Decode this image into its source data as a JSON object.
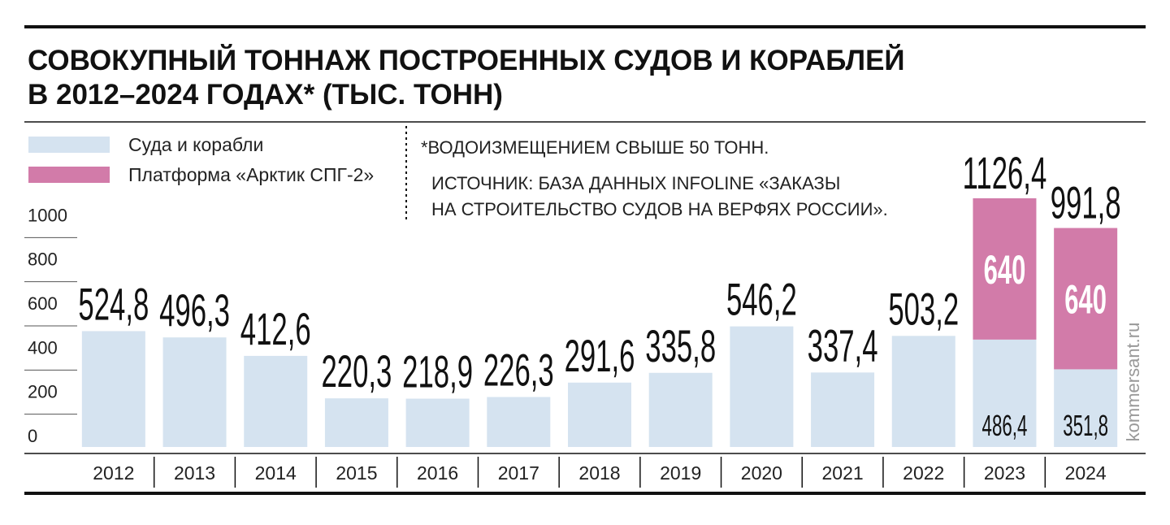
{
  "chart_data": {
    "type": "stacked_bar",
    "title_lines": [
      "СОВОКУПНЫЙ ТОННАЖ ПОСТРОЕННЫХ СУДОВ И КОРАБЛЕЙ",
      "В 2012–2024 ГОДАХ* (ТЫС. ТОНН)"
    ],
    "footnote": "*ВОДОИЗМЕЩЕНИЕМ СВЫШЕ 50 ТОНН.",
    "source_lines": [
      "ИСТОЧНИК: БАЗА ДАННЫХ INFOLINE «ЗАКАЗЫ",
      "НА СТРОИТЕЛЬСТВО СУДОВ НА ВЕРФЯХ РОССИИ»."
    ],
    "watermark": "kommersant.ru",
    "categories": [
      "2012",
      "2013",
      "2014",
      "2015",
      "2016",
      "2017",
      "2018",
      "2019",
      "2020",
      "2021",
      "2022",
      "2023",
      "2024"
    ],
    "series": [
      {
        "name": "Суда и корабли",
        "color": "#d5e3f0",
        "values": [
          524.8,
          496.3,
          412.6,
          220.3,
          218.9,
          226.3,
          291.6,
          335.8,
          546.2,
          337.4,
          503.2,
          486.4,
          351.8
        ],
        "value_labels": [
          "524,8",
          "496,3",
          "412,6",
          "220,3",
          "218,9",
          "226,3",
          "291,6",
          "335,8",
          "546,2",
          "337,4",
          "503,2",
          "486,4",
          "351,8"
        ]
      },
      {
        "name": "Платформа «Арктик СПГ-2»",
        "color": "#d27ba9",
        "values": [
          null,
          null,
          null,
          null,
          null,
          null,
          null,
          null,
          null,
          null,
          null,
          640,
          640
        ]
      }
    ],
    "total_labels": [
      null,
      null,
      null,
      null,
      null,
      null,
      null,
      null,
      null,
      null,
      null,
      "1126,4",
      "991,8"
    ],
    "ylim": [
      0,
      1200
    ],
    "yticks": [
      0,
      200,
      400,
      600,
      800,
      1000
    ]
  }
}
